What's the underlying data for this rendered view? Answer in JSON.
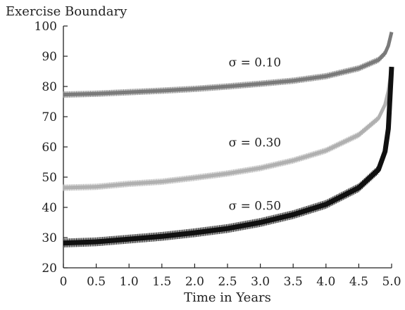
{
  "chart_data": {
    "type": "line",
    "title": "",
    "ylabel": "Exercise Boundary",
    "xlabel": "Time in Years",
    "xlim": [
      0,
      5.0
    ],
    "ylim": [
      20,
      100
    ],
    "x_ticks": [
      "0",
      "0.5",
      "1.0",
      "1.5",
      "2.0",
      "2.5",
      "3.0",
      "3.5",
      "4.0",
      "4.5",
      "5.0"
    ],
    "y_ticks": [
      "20",
      "30",
      "40",
      "50",
      "60",
      "70",
      "80",
      "90",
      "100"
    ],
    "grid": false,
    "legend": "none",
    "series": [
      {
        "name": "σ = 0.10",
        "color": "#7a7a7a",
        "x": [
          0,
          0.5,
          1.0,
          1.5,
          2.0,
          2.5,
          3.0,
          3.5,
          4.0,
          4.5,
          4.8,
          4.9,
          4.95,
          5.0
        ],
        "y": [
          77.3,
          77.6,
          78.1,
          78.6,
          79.2,
          80.0,
          80.9,
          81.9,
          83.4,
          86.0,
          88.8,
          91.0,
          93.5,
          98.0
        ]
      },
      {
        "name": "σ = 0.30",
        "color": "#b0b0b0",
        "x": [
          0,
          0.5,
          1.0,
          1.5,
          2.0,
          2.5,
          3.0,
          3.5,
          4.0,
          4.5,
          4.8,
          4.9,
          4.95,
          5.0
        ],
        "y": [
          46.5,
          46.8,
          47.8,
          48.5,
          49.8,
          51.2,
          53.0,
          55.5,
          58.8,
          64.0,
          69.5,
          74.0,
          78.5,
          86.0
        ]
      },
      {
        "name": "σ = 0.50",
        "color": "#111111",
        "x": [
          0,
          0.5,
          1.0,
          1.5,
          2.0,
          2.5,
          3.0,
          3.5,
          4.0,
          4.5,
          4.8,
          4.9,
          4.95,
          5.0
        ],
        "y": [
          28.2,
          28.6,
          29.5,
          30.4,
          31.6,
          33.0,
          35.0,
          37.6,
          41.0,
          46.5,
          52.5,
          58.5,
          66.0,
          86.5
        ]
      }
    ]
  }
}
